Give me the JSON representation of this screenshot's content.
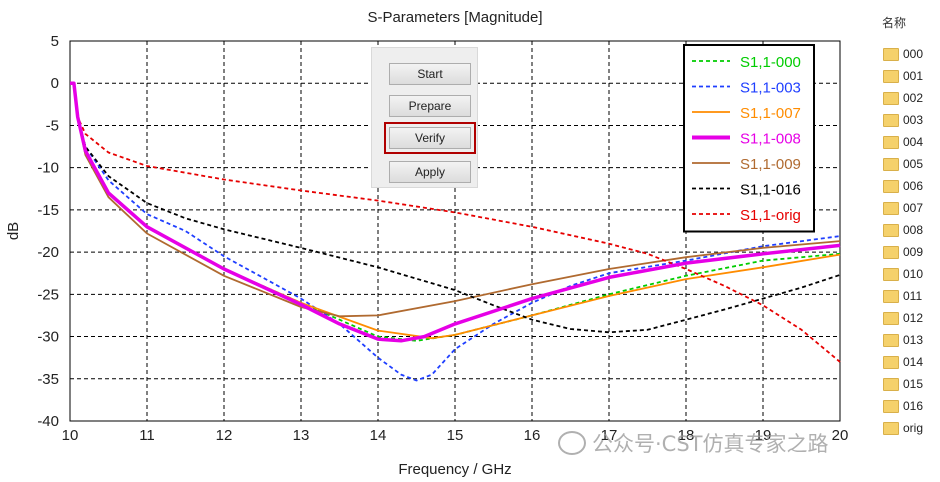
{
  "chart_data": {
    "type": "line",
    "title": "S-Parameters [Magnitude]",
    "xlabel": "Frequency / GHz",
    "ylabel": "dB",
    "xlim": [
      10,
      20
    ],
    "ylim": [
      -40,
      5
    ],
    "xticks": [
      10,
      11,
      12,
      13,
      14,
      15,
      16,
      17,
      18,
      19,
      20
    ],
    "yticks": [
      5,
      0,
      -5,
      -10,
      -15,
      -20,
      -25,
      -30,
      -35,
      -40
    ],
    "grid": true,
    "legend_position": "top-right",
    "series": [
      {
        "name": "S1,1-000",
        "color": "#00cc00",
        "dash": "dashed",
        "x": [
          10,
          10.05,
          10.1,
          10.2,
          10.5,
          11,
          12,
          13,
          14,
          14.5,
          15,
          16,
          17,
          18,
          19,
          20
        ],
        "y": [
          0,
          0,
          -4,
          -8,
          -13,
          -17,
          -22,
          -26,
          -30,
          -30.5,
          -29.8,
          -27.5,
          -25,
          -22.8,
          -21,
          -20.2
        ]
      },
      {
        "name": "S1,1-003",
        "color": "#1f3fff",
        "dash": "dashed",
        "x": [
          10,
          10.05,
          10.1,
          10.2,
          10.5,
          11,
          11.5,
          12,
          12.5,
          13,
          13.5,
          14,
          14.3,
          14.5,
          14.7,
          15,
          15.5,
          16,
          16.5,
          17,
          18,
          19,
          20
        ],
        "y": [
          0,
          0,
          -4,
          -7.5,
          -11.5,
          -15.5,
          -17.5,
          -20.5,
          -23,
          -25.5,
          -28.5,
          -32.5,
          -34.5,
          -35.2,
          -34.5,
          -31.5,
          -28.5,
          -26,
          -24,
          -22.5,
          -21,
          -19.3,
          -18.1
        ]
      },
      {
        "name": "S1,1-007",
        "color": "#ff8c00",
        "dash": "solid",
        "x": [
          10,
          10.05,
          10.1,
          10.2,
          10.5,
          11,
          12,
          13,
          14,
          14.7,
          15,
          16,
          17,
          18,
          19,
          20
        ],
        "y": [
          0,
          0,
          -4,
          -8,
          -13,
          -17,
          -22,
          -26,
          -29.3,
          -30.2,
          -29.8,
          -27.5,
          -25.2,
          -23.2,
          -21.8,
          -20.3
        ]
      },
      {
        "name": "S1,1-008",
        "color": "#e600e6",
        "dash": "solid",
        "thick": true,
        "x": [
          10,
          10.05,
          10.1,
          10.2,
          10.5,
          11,
          12,
          13,
          13.5,
          14,
          14.3,
          14.6,
          15,
          16,
          17,
          18,
          19,
          20
        ],
        "y": [
          0,
          0,
          -4,
          -8,
          -13,
          -17,
          -22,
          -26.2,
          -28.5,
          -30.3,
          -30.5,
          -30,
          -28.5,
          -25.5,
          -23,
          -21.3,
          -20.2,
          -19.2
        ]
      },
      {
        "name": "S1,1-009",
        "color": "#b06a30",
        "dash": "solid",
        "x": [
          10,
          10.05,
          10.1,
          10.2,
          10.5,
          11,
          12,
          13,
          13.5,
          14,
          15,
          16,
          17,
          18,
          19,
          20
        ],
        "y": [
          0,
          0,
          -4,
          -8.5,
          -13.5,
          -17.8,
          -22.8,
          -26.5,
          -27.6,
          -27.5,
          -25.8,
          -23.8,
          -22,
          -20.6,
          -19.5,
          -18.7
        ]
      },
      {
        "name": "S1,1-016",
        "color": "#000000",
        "dash": "dashed",
        "x": [
          10,
          10.05,
          10.1,
          10.2,
          10.5,
          11,
          11.5,
          12,
          13,
          14,
          15,
          15.5,
          16,
          16.5,
          17,
          17.5,
          18,
          18.5,
          19,
          19.5,
          20
        ],
        "y": [
          0,
          0,
          -4,
          -7.5,
          -11,
          -14.2,
          -16,
          -17.3,
          -19.5,
          -21.8,
          -24.5,
          -26.3,
          -28,
          -29.1,
          -29.5,
          -29.2,
          -28,
          -26.8,
          -25.5,
          -24.2,
          -22.7
        ]
      },
      {
        "name": "S1,1-orig",
        "color": "#e60000",
        "dash": "dashed",
        "x": [
          10,
          10.05,
          10.1,
          10.2,
          10.5,
          11,
          12,
          13,
          14,
          15,
          16,
          17,
          17.5,
          18,
          18.5,
          19,
          19.5,
          20
        ],
        "y": [
          0,
          0,
          -4,
          -6,
          -8.2,
          -9.8,
          -11.4,
          -12.7,
          -13.9,
          -15.3,
          -17,
          -19,
          -20.2,
          -22,
          -24,
          -26.3,
          -29.2,
          -33
        ]
      }
    ]
  },
  "controls": {
    "start_label": "Start",
    "prepare_label": "Prepare",
    "verify_label": "Verify",
    "apply_label": "Apply"
  },
  "file_list": {
    "header": "名称",
    "items": [
      "000",
      "001",
      "002",
      "003",
      "004",
      "005",
      "006",
      "007",
      "008",
      "009",
      "010",
      "011",
      "012",
      "013",
      "014",
      "015",
      "016",
      "orig"
    ]
  },
  "watermark": {
    "text": "公众号·CST仿真专家之路"
  }
}
